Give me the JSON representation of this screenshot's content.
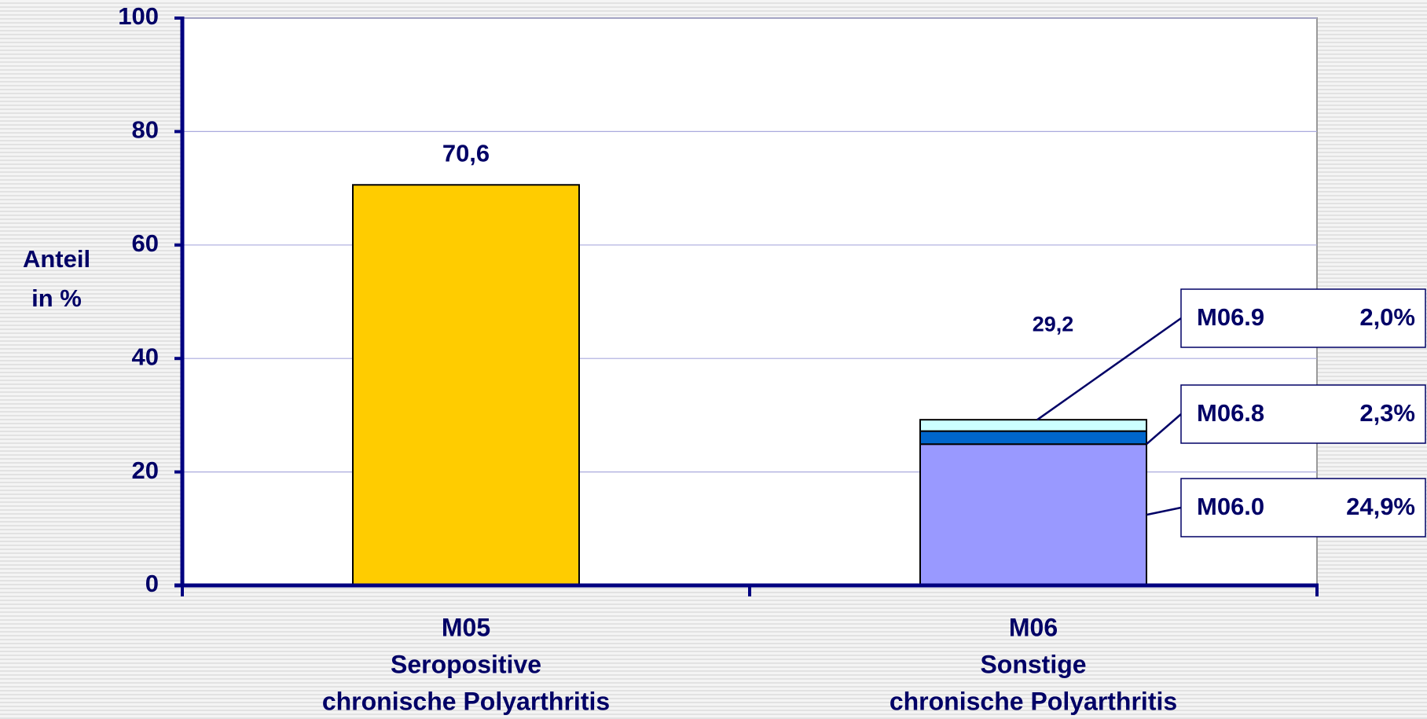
{
  "chart_data": {
    "type": "stacked_bar",
    "ylabel": [
      "Anteil",
      "in %"
    ],
    "categories": [
      [
        "M05",
        "Seropositive",
        "chronische Polyarthritis"
      ],
      [
        "M06",
        "Sonstige",
        "chronische Polyarthritis"
      ]
    ],
    "series": [
      {
        "color": "#ffcc00",
        "values": [
          70.6,
          null
        ]
      },
      {
        "name": "M06.0",
        "color": "#9999ff",
        "values": [
          null,
          24.9
        ],
        "value_labels": [
          null,
          "24,9%"
        ]
      },
      {
        "name": "M06.8",
        "color": "#0066cc",
        "values": [
          null,
          2.3
        ],
        "value_labels": [
          null,
          "2,3%"
        ]
      },
      {
        "name": "M06.9",
        "color": "#ccffff",
        "values": [
          null,
          2.0
        ],
        "value_labels": [
          null,
          "2,0%"
        ]
      }
    ],
    "totals": [
      70.6,
      29.2
    ],
    "total_labels": [
      "70,6",
      "29,2"
    ],
    "ylim": [
      0,
      100
    ],
    "yticks": [
      0,
      20,
      40,
      60,
      80,
      100
    ],
    "grid": true
  }
}
